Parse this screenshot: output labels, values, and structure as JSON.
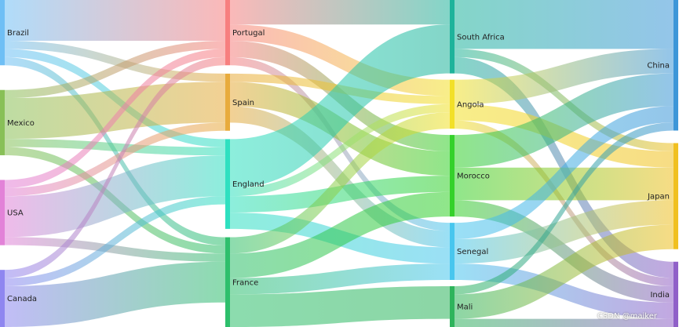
{
  "watermark": "CSDN @maiker",
  "chart_data": {
    "type": "sankey",
    "nodes": [
      {
        "id": "Brazil",
        "label": "Brazil",
        "column": 0,
        "color": "#6fbff5"
      },
      {
        "id": "Mexico",
        "label": "Mexico",
        "column": 0,
        "color": "#88c057"
      },
      {
        "id": "USA",
        "label": "USA",
        "column": 0,
        "color": "#e282d8"
      },
      {
        "id": "Canada",
        "label": "Canada",
        "column": 0,
        "color": "#8f86f0"
      },
      {
        "id": "Portugal",
        "label": "Portugal",
        "column": 1,
        "color": "#f77f7f"
      },
      {
        "id": "Spain",
        "label": "Spain",
        "column": 1,
        "color": "#e8ab3c"
      },
      {
        "id": "England",
        "label": "England",
        "column": 1,
        "color": "#2fe0c0"
      },
      {
        "id": "France",
        "label": "France",
        "column": 1,
        "color": "#2ebf6c"
      },
      {
        "id": "SouthAfrica",
        "label": "South Africa",
        "column": 2,
        "color": "#1eb39b"
      },
      {
        "id": "Angola",
        "label": "Angola",
        "column": 2,
        "color": "#f2e028"
      },
      {
        "id": "Morocco",
        "label": "Morocco",
        "column": 2,
        "color": "#34d12a"
      },
      {
        "id": "Senegal",
        "label": "Senegal",
        "column": 2,
        "color": "#48c6ee"
      },
      {
        "id": "Mali",
        "label": "Mali",
        "column": 2,
        "color": "#2eb45c"
      },
      {
        "id": "China",
        "label": "China",
        "column": 3,
        "color": "#3c96d8"
      },
      {
        "id": "Japan",
        "label": "Japan",
        "column": 3,
        "color": "#f0c020"
      },
      {
        "id": "India",
        "label": "India",
        "column": 3,
        "color": "#9060c8"
      }
    ],
    "links": [
      {
        "source": "Brazil",
        "target": "Portugal",
        "value": 5
      },
      {
        "source": "Brazil",
        "target": "Spain",
        "value": 1
      },
      {
        "source": "Brazil",
        "target": "England",
        "value": 1
      },
      {
        "source": "Brazil",
        "target": "France",
        "value": 1
      },
      {
        "source": "Mexico",
        "target": "Portugal",
        "value": 1
      },
      {
        "source": "Mexico",
        "target": "Spain",
        "value": 5
      },
      {
        "source": "Mexico",
        "target": "England",
        "value": 1
      },
      {
        "source": "Mexico",
        "target": "France",
        "value": 1
      },
      {
        "source": "USA",
        "target": "Portugal",
        "value": 1
      },
      {
        "source": "USA",
        "target": "Spain",
        "value": 1
      },
      {
        "source": "USA",
        "target": "England",
        "value": 5
      },
      {
        "source": "USA",
        "target": "France",
        "value": 1
      },
      {
        "source": "Canada",
        "target": "Portugal",
        "value": 1
      },
      {
        "source": "Canada",
        "target": "England",
        "value": 1
      },
      {
        "source": "Canada",
        "target": "France",
        "value": 5
      },
      {
        "source": "Portugal",
        "target": "SouthAfrica",
        "value": 3
      },
      {
        "source": "Portugal",
        "target": "Angola",
        "value": 2
      },
      {
        "source": "Portugal",
        "target": "Morocco",
        "value": 2
      },
      {
        "source": "Portugal",
        "target": "Senegal",
        "value": 1
      },
      {
        "source": "Spain",
        "target": "Angola",
        "value": 1
      },
      {
        "source": "Spain",
        "target": "Morocco",
        "value": 3
      },
      {
        "source": "Spain",
        "target": "Senegal",
        "value": 2
      },
      {
        "source": "England",
        "target": "SouthAfrica",
        "value": 6
      },
      {
        "source": "England",
        "target": "Angola",
        "value": 1
      },
      {
        "source": "England",
        "target": "Morocco",
        "value": 2
      },
      {
        "source": "England",
        "target": "Senegal",
        "value": 2
      },
      {
        "source": "France",
        "target": "Angola",
        "value": 2
      },
      {
        "source": "France",
        "target": "Morocco",
        "value": 3
      },
      {
        "source": "France",
        "target": "Senegal",
        "value": 2
      },
      {
        "source": "France",
        "target": "Mali",
        "value": 4
      },
      {
        "source": "SouthAfrica",
        "target": "China",
        "value": 6
      },
      {
        "source": "SouthAfrica",
        "target": "Japan",
        "value": 1
      },
      {
        "source": "SouthAfrica",
        "target": "India",
        "value": 2
      },
      {
        "source": "Angola",
        "target": "China",
        "value": 3
      },
      {
        "source": "Angola",
        "target": "Japan",
        "value": 2
      },
      {
        "source": "Angola",
        "target": "India",
        "value": 1
      },
      {
        "source": "Morocco",
        "target": "China",
        "value": 4
      },
      {
        "source": "Morocco",
        "target": "Japan",
        "value": 4
      },
      {
        "source": "Morocco",
        "target": "India",
        "value": 2
      },
      {
        "source": "Senegal",
        "target": "China",
        "value": 2
      },
      {
        "source": "Senegal",
        "target": "Japan",
        "value": 3
      },
      {
        "source": "Senegal",
        "target": "India",
        "value": 2
      },
      {
        "source": "Mali",
        "target": "China",
        "value": 1
      },
      {
        "source": "Mali",
        "target": "Japan",
        "value": 3
      },
      {
        "source": "Mali",
        "target": "India",
        "value": 1
      }
    ]
  }
}
